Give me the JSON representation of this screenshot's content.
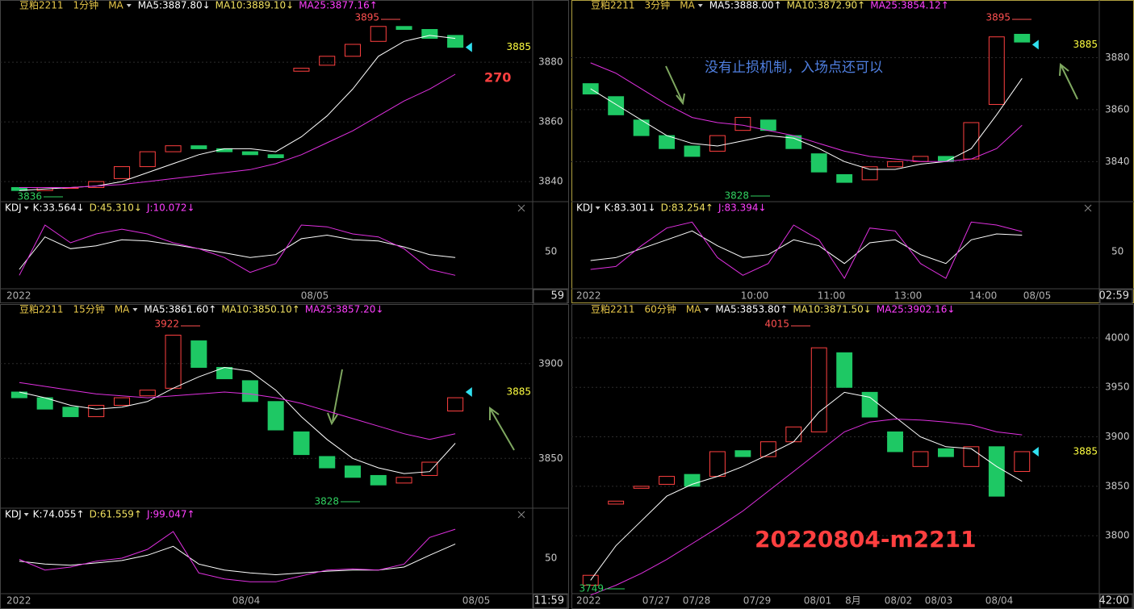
{
  "chart_data": [
    {
      "type": "candlestick",
      "symbol": "豆粕2211",
      "period": "1分钟",
      "indicator": "MA",
      "ma_labels": [
        "MA5:3887.80↓",
        "MA10:3889.10↓",
        "MA25:3877.16↑"
      ],
      "ylim": [
        3833.8,
        3896
      ],
      "yticks": [
        3840,
        3860,
        3880
      ],
      "last_price": 3885,
      "high": 3895,
      "low": 3836,
      "open": [
        3838,
        3837,
        3838,
        3838,
        3841,
        3845,
        3850,
        3852,
        3851,
        3850,
        3849,
        3877,
        3879,
        3882,
        3887,
        3892,
        3891,
        3889
      ],
      "close": [
        3837,
        3838,
        3838,
        3840,
        3845,
        3850,
        3852,
        3851,
        3850,
        3849,
        3848,
        3878,
        3882,
        3886,
        3892,
        3891,
        3888,
        3885
      ],
      "ma5": [
        3837,
        3837.5,
        3838,
        3838.5,
        3840,
        3843,
        3846,
        3849,
        3851,
        3851,
        3850,
        3855,
        3862,
        3871,
        3882,
        3887,
        3889,
        3888
      ],
      "ma25": [
        3838,
        3838,
        3838,
        3838.5,
        3839,
        3840,
        3841,
        3842,
        3843,
        3844,
        3846,
        3849,
        3853,
        3857,
        3862,
        3867,
        3871,
        3876
      ],
      "kdj": {
        "labels": [
          "KDJ",
          "K:33.564↓",
          "D:45.310↓",
          "J:10.072↓"
        ],
        "ylim": [
          -10,
          110
        ],
        "yticks": [
          50
        ],
        "k": [
          20,
          75,
          55,
          60,
          70,
          68,
          62,
          55,
          48,
          40,
          45,
          72,
          78,
          70,
          68,
          58,
          45,
          40
        ],
        "j": [
          10,
          95,
          65,
          80,
          88,
          80,
          65,
          55,
          40,
          15,
          30,
          95,
          92,
          80,
          75,
          55,
          20,
          10
        ]
      },
      "time_labels": [
        "2022",
        "08/05"
      ],
      "corner": "59",
      "note": "270"
    },
    {
      "type": "candlestick",
      "symbol": "豆粕2211",
      "period": "3分钟",
      "indicator": "MA",
      "ma_labels": [
        "MA5:3888.00↑",
        "MA10:3872.90↑",
        "MA25:3854.12↑"
      ],
      "ylim": [
        3825.2,
        3896.6
      ],
      "yticks": [
        3840,
        3860,
        3880
      ],
      "last_price": 3885,
      "high": 3895,
      "low": 3828,
      "open": [
        3870,
        3865,
        3856,
        3850,
        3846,
        3844,
        3852,
        3856,
        3850,
        3843,
        3835,
        3833,
        3838,
        3840,
        3842,
        3841,
        3862,
        3889
      ],
      "close": [
        3866,
        3858,
        3850,
        3845,
        3842,
        3850,
        3857,
        3852,
        3845,
        3836,
        3832,
        3838,
        3840,
        3842,
        3840,
        3855,
        3888,
        3886
      ],
      "ma5": [
        3868,
        3862,
        3856,
        3850,
        3847,
        3846,
        3848,
        3850,
        3849,
        3845,
        3840,
        3837,
        3837,
        3839,
        3840,
        3845,
        3858,
        3872
      ],
      "ma25": [
        3878,
        3874,
        3868,
        3862,
        3857,
        3855,
        3854,
        3852,
        3850,
        3847,
        3844,
        3842,
        3841,
        3840,
        3840,
        3841,
        3845,
        3854
      ],
      "kdj": {
        "labels": [
          "KDJ",
          "K:83.301↓",
          "D:83.254↑",
          "J:83.394↓"
        ],
        "ylim": [
          -10,
          110
        ],
        "yticks": [
          50
        ],
        "k": [
          35,
          40,
          55,
          70,
          85,
          60,
          40,
          45,
          70,
          60,
          30,
          65,
          70,
          45,
          30,
          70,
          80,
          78
        ],
        "j": [
          20,
          25,
          60,
          90,
          100,
          40,
          10,
          30,
          95,
          70,
          5,
          90,
          85,
          30,
          5,
          100,
          95,
          84
        ]
      },
      "time_labels": [
        "2022",
        "10:00",
        "11:00",
        "13:00",
        "14:00",
        "08/05"
      ],
      "corner": "02:59",
      "note": "没有止损机制，入场点还可以"
    },
    {
      "type": "candlestick",
      "symbol": "豆粕2211",
      "period": "15分钟",
      "indicator": "MA",
      "ma_labels": [
        "MA5:3861.60↑",
        "MA10:3850.10↑",
        "MA25:3857.20↓"
      ],
      "ylim": [
        3824.6,
        3923.3
      ],
      "yticks": [
        3850,
        3900
      ],
      "last_price": 3885,
      "high": 3922,
      "low": 3828,
      "open": [
        3885,
        3882,
        3877,
        3872,
        3878,
        3883,
        3887,
        3912,
        3898,
        3891,
        3880,
        3864,
        3851,
        3846,
        3841,
        3837,
        3841,
        3875
      ],
      "close": [
        3882,
        3876,
        3872,
        3878,
        3882,
        3886,
        3915,
        3898,
        3892,
        3880,
        3865,
        3852,
        3845,
        3840,
        3836,
        3840,
        3848,
        3882
      ],
      "ma5": [
        3885,
        3882,
        3878,
        3876,
        3877,
        3880,
        3887,
        3893,
        3898,
        3896,
        3886,
        3872,
        3860,
        3850,
        3845,
        3842,
        3843,
        3858
      ],
      "ma25": [
        3890,
        3888,
        3886,
        3884,
        3883,
        3882,
        3883,
        3884,
        3885,
        3884,
        3882,
        3879,
        3875,
        3871,
        3867,
        3863,
        3860,
        3863
      ],
      "kdj": {
        "labels": [
          "KDJ",
          "K:74.055↑",
          "D:61.559↑",
          "J:99.047↑"
        ],
        "ylim": [
          -10,
          110
        ],
        "yticks": [
          50
        ],
        "k": [
          45,
          40,
          38,
          42,
          46,
          55,
          70,
          40,
          30,
          25,
          22,
          25,
          28,
          30,
          30,
          35,
          55,
          74
        ],
        "j": [
          48,
          30,
          35,
          45,
          50,
          65,
          95,
          25,
          15,
          10,
          10,
          20,
          30,
          32,
          30,
          40,
          85,
          99
        ]
      },
      "time_labels": [
        "2022",
        "08/04",
        "08/05"
      ],
      "corner": "11:59"
    },
    {
      "type": "candlestick",
      "symbol": "豆粕2211",
      "period": "60分钟",
      "indicator": "MA",
      "ma_labels": [
        "MA5:3853.80↑",
        "MA10:3871.50↓",
        "MA25:3902.16↓"
      ],
      "ylim": [
        3739.8,
        4018.7
      ],
      "yticks": [
        3800,
        3850,
        3900,
        3950,
        4000
      ],
      "last_price": 3885,
      "high": 4015,
      "low": 3749,
      "open": [
        3750,
        3832,
        3848,
        3852,
        3862,
        3860,
        3886,
        3880,
        3895,
        3905,
        3985,
        3945,
        3905,
        3870,
        3888,
        3870,
        3890,
        3865
      ],
      "close": [
        3760,
        3835,
        3850,
        3860,
        3850,
        3885,
        3880,
        3895,
        3910,
        3990,
        3950,
        3920,
        3885,
        3885,
        3880,
        3890,
        3840,
        3885
      ],
      "ma5": [
        3755,
        3790,
        3815,
        3840,
        3852,
        3860,
        3870,
        3882,
        3895,
        3925,
        3945,
        3940,
        3920,
        3900,
        3890,
        3888,
        3870,
        3855
      ],
      "ma25": [
        3740,
        3750,
        3762,
        3776,
        3792,
        3808,
        3825,
        3845,
        3865,
        3885,
        3905,
        3915,
        3918,
        3917,
        3915,
        3912,
        3905,
        3902
      ],
      "time_labels": [
        "2022",
        "07/27",
        "07/28",
        "07/29",
        "08/01",
        "8月",
        "08/02",
        "08/03",
        "08/04"
      ],
      "corner": "42:00",
      "note": "20220804-m2211"
    }
  ]
}
